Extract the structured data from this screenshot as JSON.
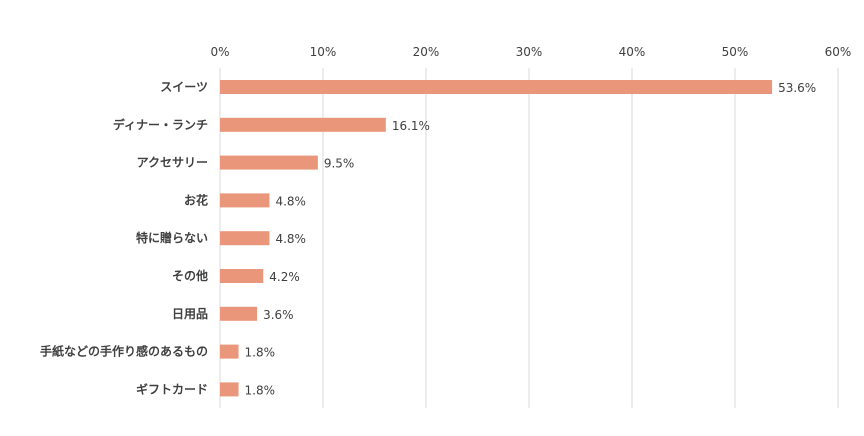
{
  "chart_data": {
    "type": "bar",
    "orientation": "horizontal",
    "categories": [
      "スイーツ",
      "ディナー・ランチ",
      "アクセサリー",
      "お花",
      "特に贈らない",
      "その他",
      "日用品",
      "手紙などの手作り感のあるもの",
      "ギフトカード"
    ],
    "values": [
      53.6,
      16.1,
      9.5,
      4.8,
      4.8,
      4.2,
      3.6,
      1.8,
      1.8
    ],
    "data_labels": [
      "53.6%",
      "16.1%",
      "9.5%",
      "4.8%",
      "4.8%",
      "4.2%",
      "3.6%",
      "1.8%",
      "1.8%"
    ],
    "tick_labels": [
      "0%",
      "10%",
      "20%",
      "30%",
      "40%",
      "50%",
      "60%"
    ],
    "xlim": [
      0,
      60
    ],
    "x_axis_position": "top",
    "grid": true,
    "bar_color": "#E9967A",
    "title": "",
    "xlabel": "",
    "ylabel": ""
  }
}
